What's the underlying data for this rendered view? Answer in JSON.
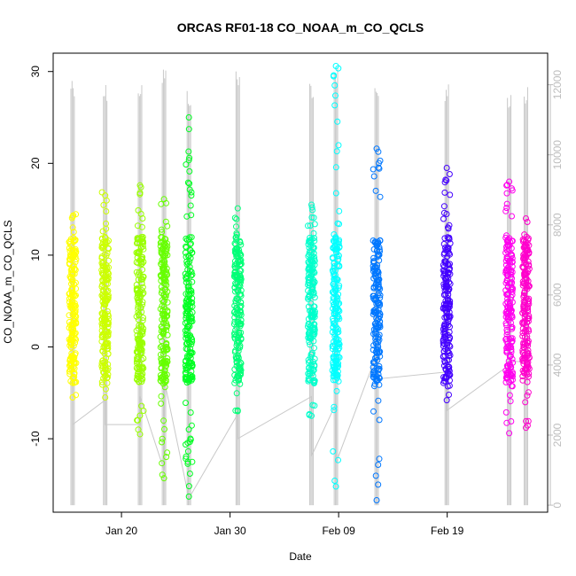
{
  "chart_data": {
    "type": "scatter",
    "title": "ORCAS RF01-18 CO_NOAA_m_CO_QCLS",
    "xlabel": "Date",
    "ylabel": "CO_NOAA_m_CO_QCLS",
    "x_ticks": [
      {
        "date": "2016-01-20",
        "label": "Jan 20"
      },
      {
        "date": "2016-01-30",
        "label": "Jan 30"
      },
      {
        "date": "2016-02-09",
        "label": "Feb 09"
      },
      {
        "date": "2016-02-19",
        "label": "Feb 19"
      }
    ],
    "xlim": [
      "2016-01-13T17:00",
      "2016-02-28T06:00"
    ],
    "ylim": [
      -18,
      32
    ],
    "y_ticks": [
      -10,
      0,
      10,
      20,
      30
    ],
    "y2lim": [
      -200,
      12900
    ],
    "y2_ticks": [
      0,
      2000,
      4000,
      6000,
      8000,
      10000,
      12000
    ],
    "grid": false,
    "flights": [
      {
        "date": "2016-01-15T12:00",
        "color": "#ffff00",
        "co_min": -6,
        "co_max": 14.7,
        "co_low_outlier": -5.5,
        "co_high_outlier": 14.2,
        "alt_max": 12300,
        "alt_min": 0
      },
      {
        "date": "2016-01-18T12:00",
        "color": "#ccff00",
        "co_min": -5.5,
        "co_max": 17.2,
        "co_low_outlier": -5.5,
        "co_high_outlier": 16.5,
        "alt_max": 12100,
        "alt_min": 0
      },
      {
        "date": "2016-01-21T17:00",
        "color": "#99ff00",
        "co_min": -9.5,
        "co_max": 17.6,
        "co_low_outlier": -9.5,
        "co_high_outlier": 17.6,
        "alt_max": 12200,
        "alt_min": 0
      },
      {
        "date": "2016-01-23T22:00",
        "color": "#66ff00",
        "co_min": -14.3,
        "co_max": 16.1,
        "co_low_outlier": -14.3,
        "co_high_outlier": 16.1,
        "alt_max": 12550,
        "alt_min": 0
      },
      {
        "date": "2016-01-26T05:00",
        "color": "#00ff22",
        "co_min": -16.3,
        "co_max": 25,
        "co_low_outlier": -16.3,
        "co_high_outlier": 25,
        "alt_max": 11950,
        "alt_min": 0
      },
      {
        "date": "2016-01-30T17:00",
        "color": "#00ff77",
        "co_min": -7,
        "co_max": 15.1,
        "co_low_outlier": -7,
        "co_high_outlier": 15.1,
        "alt_max": 12450,
        "alt_min": 0
      },
      {
        "date": "2016-02-06T12:00",
        "color": "#00ffcc",
        "co_min": -7.5,
        "co_max": 15.5,
        "co_low_outlier": -7.5,
        "co_high_outlier": 15.5,
        "alt_max": 12200,
        "alt_min": 0
      },
      {
        "date": "2016-02-08T18:00",
        "color": "#00ffff",
        "co_min": -15.2,
        "co_max": 30.6,
        "co_low_outlier": -15.2,
        "co_high_outlier": 30.6,
        "alt_max": 12600,
        "alt_min": 0
      },
      {
        "date": "2016-02-12T12:00",
        "color": "#0077ff",
        "co_min": -16.7,
        "co_max": 21.6,
        "co_low_outlier": -16.7,
        "co_high_outlier": 21.6,
        "alt_max": 12000,
        "alt_min": 0
      },
      {
        "date": "2016-02-18T23:00",
        "color": "#4400ff",
        "co_min": -5.8,
        "co_max": 19.5,
        "co_low_outlier": -5.8,
        "co_high_outlier": 19.5,
        "alt_max": 12150,
        "alt_min": 0
      },
      {
        "date": "2016-02-24T17:00",
        "color": "#ff00ee",
        "co_min": -9.4,
        "co_max": 18,
        "co_low_outlier": -9.4,
        "co_high_outlier": 18,
        "alt_max": 11900,
        "alt_min": 0
      },
      {
        "date": "2016-02-26T06:00",
        "color": "#ff00cc",
        "co_min": -8.8,
        "co_max": 14,
        "co_low_outlier": -8.8,
        "co_high_outlier": 14,
        "alt_max": 12000,
        "alt_min": 0
      }
    ],
    "altitude_path": [
      [
        "2016-01-15T12:00",
        2300
      ],
      [
        "2016-01-18T12:00",
        3000
      ],
      [
        "2016-01-18T12:00",
        2300
      ],
      [
        "2016-01-21T17:00",
        2300
      ],
      [
        "2016-01-21T17:00",
        3100
      ],
      [
        "2016-01-23T22:00",
        1000
      ],
      [
        "2016-01-23T22:00",
        3600
      ],
      [
        "2016-01-26T05:00",
        200
      ],
      [
        "2016-01-30T17:00",
        2600
      ],
      [
        "2016-01-30T17:00",
        1900
      ],
      [
        "2016-02-06T12:00",
        3100
      ],
      [
        "2016-02-06T12:00",
        1400
      ],
      [
        "2016-02-08T18:00",
        2900
      ],
      [
        "2016-02-08T18:00",
        1200
      ],
      [
        "2016-02-12T12:00",
        4300
      ],
      [
        "2016-02-12T12:00",
        3600
      ],
      [
        "2016-02-18T23:00",
        3800
      ],
      [
        "2016-02-18T23:00",
        2700
      ],
      [
        "2016-02-24T17:00",
        4000
      ],
      [
        "2016-02-24T17:00",
        4100
      ],
      [
        "2016-02-26T06:00",
        4100
      ]
    ]
  }
}
